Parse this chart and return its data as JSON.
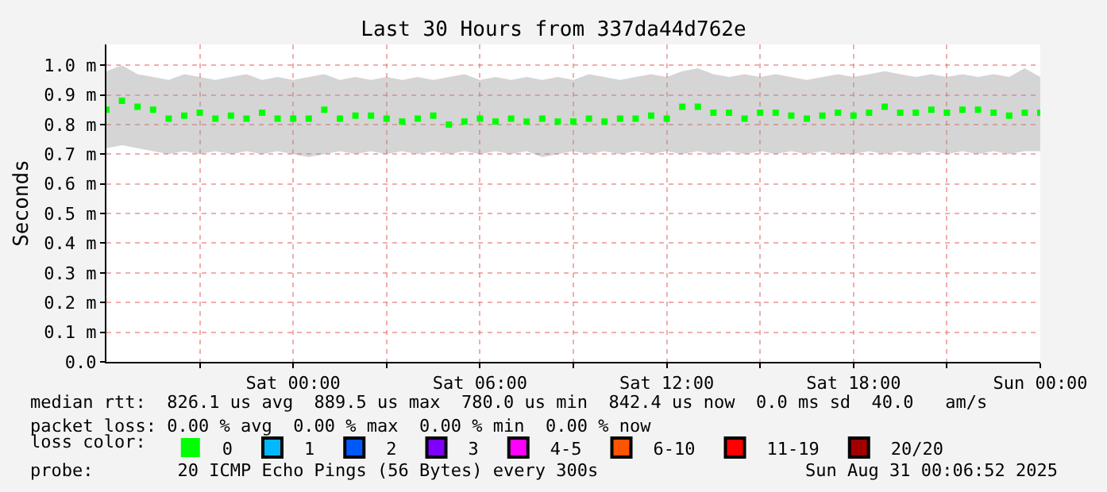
{
  "chart_data": {
    "type": "scatter",
    "title": "Last 30 Hours from 337da44d762e",
    "ylabel": "Seconds",
    "x": [
      "2025-08-29T18:00",
      "2025-08-29T18:30",
      "2025-08-29T19:00",
      "2025-08-29T19:30",
      "2025-08-29T20:00",
      "2025-08-29T20:30",
      "2025-08-29T21:00",
      "2025-08-29T21:30",
      "2025-08-29T22:00",
      "2025-08-29T22:30",
      "2025-08-29T23:00",
      "2025-08-29T23:30",
      "2025-08-30T00:00",
      "2025-08-30T00:30",
      "2025-08-30T01:00",
      "2025-08-30T01:30",
      "2025-08-30T02:00",
      "2025-08-30T02:30",
      "2025-08-30T03:00",
      "2025-08-30T03:30",
      "2025-08-30T04:00",
      "2025-08-30T04:30",
      "2025-08-30T05:00",
      "2025-08-30T05:30",
      "2025-08-30T06:00",
      "2025-08-30T06:30",
      "2025-08-30T07:00",
      "2025-08-30T07:30",
      "2025-08-30T08:00",
      "2025-08-30T08:30",
      "2025-08-30T09:00",
      "2025-08-30T09:30",
      "2025-08-30T10:00",
      "2025-08-30T10:30",
      "2025-08-30T11:00",
      "2025-08-30T11:30",
      "2025-08-30T12:00",
      "2025-08-30T12:30",
      "2025-08-30T13:00",
      "2025-08-30T13:30",
      "2025-08-30T14:00",
      "2025-08-30T14:30",
      "2025-08-30T15:00",
      "2025-08-30T15:30",
      "2025-08-30T16:00",
      "2025-08-30T16:30",
      "2025-08-30T17:00",
      "2025-08-30T17:30",
      "2025-08-30T18:00",
      "2025-08-30T18:30",
      "2025-08-30T19:00",
      "2025-08-30T19:30",
      "2025-08-30T20:00",
      "2025-08-30T20:30",
      "2025-08-30T21:00",
      "2025-08-30T21:30",
      "2025-08-30T22:00",
      "2025-08-30T22:30",
      "2025-08-30T23:00",
      "2025-08-30T23:30",
      "2025-08-31T00:00"
    ],
    "series": [
      {
        "name": "0",
        "color": "#00ff00",
        "values": [
          0.85,
          0.88,
          0.86,
          0.85,
          0.82,
          0.83,
          0.84,
          0.82,
          0.83,
          0.82,
          0.84,
          0.82,
          0.82,
          0.82,
          0.85,
          0.82,
          0.83,
          0.83,
          0.82,
          0.81,
          0.82,
          0.83,
          0.8,
          0.81,
          0.82,
          0.81,
          0.82,
          0.81,
          0.82,
          0.81,
          0.81,
          0.82,
          0.81,
          0.82,
          0.82,
          0.83,
          0.82,
          0.86,
          0.86,
          0.84,
          0.84,
          0.82,
          0.84,
          0.84,
          0.83,
          0.82,
          0.83,
          0.84,
          0.83,
          0.84,
          0.86,
          0.84,
          0.84,
          0.85,
          0.84,
          0.85,
          0.85,
          0.84,
          0.83,
          0.84,
          0.84
        ],
        "lower": [
          0.72,
          0.73,
          0.72,
          0.71,
          0.7,
          0.71,
          0.7,
          0.71,
          0.7,
          0.71,
          0.7,
          0.71,
          0.7,
          0.69,
          0.7,
          0.71,
          0.7,
          0.71,
          0.7,
          0.71,
          0.7,
          0.71,
          0.7,
          0.71,
          0.7,
          0.71,
          0.7,
          0.71,
          0.69,
          0.7,
          0.71,
          0.7,
          0.71,
          0.7,
          0.71,
          0.7,
          0.71,
          0.7,
          0.71,
          0.7,
          0.71,
          0.7,
          0.71,
          0.7,
          0.71,
          0.7,
          0.71,
          0.7,
          0.7,
          0.71,
          0.7,
          0.71,
          0.7,
          0.71,
          0.7,
          0.71,
          0.7,
          0.71,
          0.7,
          0.71,
          0.71
        ],
        "upper": [
          0.98,
          1.0,
          0.97,
          0.96,
          0.95,
          0.97,
          0.96,
          0.95,
          0.96,
          0.97,
          0.95,
          0.96,
          0.95,
          0.96,
          0.97,
          0.95,
          0.96,
          0.95,
          0.96,
          0.95,
          0.96,
          0.95,
          0.96,
          0.97,
          0.95,
          0.96,
          0.95,
          0.96,
          0.95,
          0.96,
          0.95,
          0.97,
          0.96,
          0.95,
          0.96,
          0.97,
          0.96,
          0.98,
          0.99,
          0.97,
          0.96,
          0.97,
          0.96,
          0.97,
          0.96,
          0.95,
          0.96,
          0.97,
          0.96,
          0.97,
          0.98,
          0.97,
          0.96,
          0.97,
          0.96,
          0.97,
          0.96,
          0.97,
          0.96,
          0.99,
          0.96
        ]
      },
      {
        "name": "1",
        "color": "#00b8ff",
        "values": [
          null,
          null,
          null,
          null,
          null,
          null,
          null,
          null,
          null,
          null,
          null,
          null,
          null,
          null,
          null,
          null,
          null,
          null,
          null,
          null,
          null,
          null,
          null,
          null,
          null,
          null,
          null,
          null,
          null,
          null,
          null,
          null,
          null,
          null,
          null,
          null,
          null,
          null,
          null,
          null,
          null,
          null,
          null,
          null,
          null,
          null,
          null,
          null,
          null,
          null,
          null,
          null,
          null,
          null,
          null,
          null,
          null,
          null,
          null,
          null,
          null
        ]
      },
      {
        "name": "2",
        "color": "#0059ff",
        "values": [
          null,
          null,
          null,
          null,
          null,
          null,
          null,
          null,
          null,
          null,
          null,
          null,
          null,
          null,
          null,
          null,
          null,
          null,
          null,
          null,
          null,
          null,
          null,
          null,
          null,
          null,
          null,
          null,
          null,
          null,
          null,
          null,
          null,
          null,
          null,
          null,
          null,
          null,
          null,
          null,
          null,
          null,
          null,
          null,
          null,
          null,
          null,
          null,
          null,
          null,
          null,
          null,
          null,
          null,
          null,
          null,
          null,
          null,
          null,
          null,
          null
        ]
      },
      {
        "name": "3",
        "color": "#7e00ff",
        "values": [
          null,
          null,
          null,
          null,
          null,
          null,
          null,
          null,
          null,
          null,
          null,
          null,
          null,
          null,
          null,
          null,
          null,
          null,
          null,
          null,
          null,
          null,
          null,
          null,
          null,
          null,
          null,
          null,
          null,
          null,
          null,
          null,
          null,
          null,
          null,
          null,
          null,
          null,
          null,
          null,
          null,
          null,
          null,
          null,
          null,
          null,
          null,
          null,
          null,
          null,
          null,
          null,
          null,
          null,
          null,
          null,
          null,
          null,
          null,
          null,
          null
        ]
      },
      {
        "name": "4-5",
        "color": "#ff00ff",
        "values": [
          null,
          null,
          null,
          null,
          null,
          null,
          null,
          null,
          null,
          null,
          null,
          null,
          null,
          null,
          null,
          null,
          null,
          null,
          null,
          null,
          null,
          null,
          null,
          null,
          null,
          null,
          null,
          null,
          null,
          null,
          null,
          null,
          null,
          null,
          null,
          null,
          null,
          null,
          null,
          null,
          null,
          null,
          null,
          null,
          null,
          null,
          null,
          null,
          null,
          null,
          null,
          null,
          null,
          null,
          null,
          null,
          null,
          null,
          null,
          null,
          null
        ]
      },
      {
        "name": "6-10",
        "color": "#ff5500",
        "values": [
          null,
          null,
          null,
          null,
          null,
          null,
          null,
          null,
          null,
          null,
          null,
          null,
          null,
          null,
          null,
          null,
          null,
          null,
          null,
          null,
          null,
          null,
          null,
          null,
          null,
          null,
          null,
          null,
          null,
          null,
          null,
          null,
          null,
          null,
          null,
          null,
          null,
          null,
          null,
          null,
          null,
          null,
          null,
          null,
          null,
          null,
          null,
          null,
          null,
          null,
          null,
          null,
          null,
          null,
          null,
          null,
          null,
          null,
          null,
          null,
          null
        ]
      },
      {
        "name": "11-19",
        "color": "#ff0000",
        "values": [
          null,
          null,
          null,
          null,
          null,
          null,
          null,
          null,
          null,
          null,
          null,
          null,
          null,
          null,
          null,
          null,
          null,
          null,
          null,
          null,
          null,
          null,
          null,
          null,
          null,
          null,
          null,
          null,
          null,
          null,
          null,
          null,
          null,
          null,
          null,
          null,
          null,
          null,
          null,
          null,
          null,
          null,
          null,
          null,
          null,
          null,
          null,
          null,
          null,
          null,
          null,
          null,
          null,
          null,
          null,
          null,
          null,
          null,
          null,
          null,
          null
        ]
      },
      {
        "name": "20/20",
        "color": "#a10000",
        "values": [
          null,
          null,
          null,
          null,
          null,
          null,
          null,
          null,
          null,
          null,
          null,
          null,
          null,
          null,
          null,
          null,
          null,
          null,
          null,
          null,
          null,
          null,
          null,
          null,
          null,
          null,
          null,
          null,
          null,
          null,
          null,
          null,
          null,
          null,
          null,
          null,
          null,
          null,
          null,
          null,
          null,
          null,
          null,
          null,
          null,
          null,
          null,
          null,
          null,
          null,
          null,
          null,
          null,
          null,
          null,
          null,
          null,
          null,
          null,
          null,
          null
        ]
      }
    ],
    "legend_title": "loss color:",
    "legend": "bottom",
    "marker": "square",
    "grid": true,
    "xlim": [
      "2025-08-29T18:00",
      "2025-08-31T00:00"
    ],
    "xticks": [
      {
        "value": "2025-08-29T21:00",
        "label": null
      },
      {
        "value": "2025-08-30T00:00",
        "label": "Sat 00:00"
      },
      {
        "value": "2025-08-30T03:00",
        "label": null
      },
      {
        "value": "2025-08-30T06:00",
        "label": "Sat 06:00"
      },
      {
        "value": "2025-08-30T09:00",
        "label": null
      },
      {
        "value": "2025-08-30T12:00",
        "label": "Sat 12:00"
      },
      {
        "value": "2025-08-30T15:00",
        "label": null
      },
      {
        "value": "2025-08-30T18:00",
        "label": "Sat 18:00"
      },
      {
        "value": "2025-08-30T21:00",
        "label": null
      },
      {
        "value": "2025-08-31T00:00",
        "label": "Sun 00:00"
      }
    ],
    "ylim": [
      0,
      1.07
    ],
    "yticks": [
      {
        "value": 0,
        "label": "0.0"
      },
      {
        "value": 0.1,
        "label": "0.1 m"
      },
      {
        "value": 0.2,
        "label": "0.2 m"
      },
      {
        "value": 0.3,
        "label": "0.3 m"
      },
      {
        "value": 0.4,
        "label": "0.4 m"
      },
      {
        "value": 0.5,
        "label": "0.5 m"
      },
      {
        "value": 0.6,
        "label": "0.6 m"
      },
      {
        "value": 0.7,
        "label": "0.7 m"
      },
      {
        "value": 0.8,
        "label": "0.8 m"
      },
      {
        "value": 0.9,
        "label": "0.9 m"
      },
      {
        "value": 1.0,
        "label": "1.0 m"
      }
    ],
    "annotations": [
      "median rtt:  826.1 us avg  889.5 us max  780.0 us min  842.4 us now  0.0 ms sd  40.0   am/s",
      "packet loss: 0.00 % avg  0.00 % max  0.00 % min  0.00 % now",
      "probe:        20 ICMP Echo Pings (56 Bytes) every 300s",
      "Sun Aug 31 00:06:52 2025"
    ]
  }
}
